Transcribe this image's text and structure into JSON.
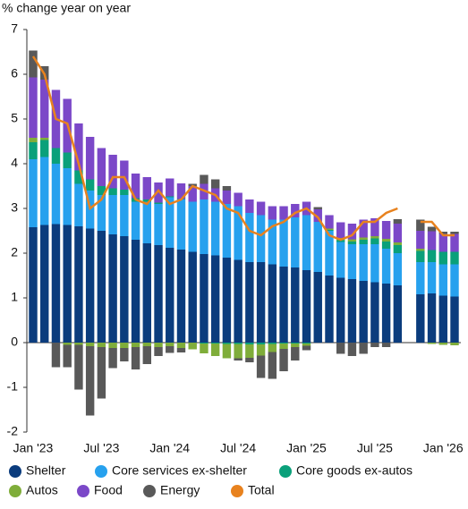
{
  "chart_data": {
    "type": "stacked_bar_line",
    "ylabel": "% change year on year",
    "categories": [
      "Jan '23",
      null,
      null,
      null,
      null,
      null,
      "Jul '23",
      null,
      null,
      null,
      null,
      null,
      "Jan '24",
      null,
      null,
      null,
      null,
      null,
      "Jul '24",
      null,
      null,
      null,
      null,
      null,
      "Jan '25",
      null,
      null,
      null,
      null,
      null,
      "Jul '25",
      null,
      null,
      null,
      null,
      null,
      "Jan '26",
      null
    ],
    "ylim": [
      -2,
      7
    ],
    "yticks": [
      -2,
      -1,
      0,
      1,
      2,
      3,
      4,
      5,
      6,
      7
    ],
    "legend": "bottom",
    "series": [
      {
        "name": "Shelter",
        "color": "#0b3c7d",
        "values": [
          2.58,
          2.63,
          2.65,
          2.63,
          2.6,
          2.55,
          2.5,
          2.42,
          2.38,
          2.3,
          2.22,
          2.18,
          2.12,
          2.08,
          2.03,
          1.98,
          1.95,
          1.9,
          1.85,
          1.8,
          1.8,
          1.75,
          1.7,
          1.68,
          1.62,
          1.58,
          1.5,
          1.45,
          1.42,
          1.38,
          1.35,
          1.32,
          1.28,
          null,
          1.08,
          1.1,
          1.05,
          1.03
        ]
      },
      {
        "name": "Core services ex-shelter",
        "color": "#27a1ee",
        "values": [
          1.52,
          1.52,
          1.35,
          1.27,
          0.95,
          0.85,
          0.8,
          0.88,
          0.92,
          0.85,
          0.93,
          0.92,
          1.13,
          1.12,
          1.12,
          1.22,
          1.2,
          1.2,
          1.2,
          1.1,
          1.05,
          1.0,
          1.05,
          1.12,
          1.23,
          1.12,
          1.0,
          0.8,
          0.78,
          0.82,
          0.85,
          0.78,
          0.72,
          null,
          0.72,
          0.7,
          0.7,
          0.72
        ]
      },
      {
        "name": "Core goods ex-autos",
        "color": "#0aa07a",
        "values": [
          0.38,
          0.38,
          0.35,
          0.35,
          0.3,
          0.25,
          0.2,
          0.15,
          0.12,
          0.08,
          0.05,
          0.03,
          0.02,
          0.01,
          0.0,
          -0.02,
          -0.02,
          -0.03,
          -0.03,
          -0.04,
          -0.04,
          -0.03,
          -0.02,
          -0.02,
          -0.02,
          0.0,
          0.02,
          0.04,
          0.06,
          0.1,
          0.13,
          0.16,
          0.18,
          null,
          0.25,
          0.27,
          0.28,
          0.28
        ]
      },
      {
        "name": "Autos",
        "color": "#7fad3a",
        "values": [
          0.1,
          0.05,
          0.0,
          -0.05,
          -0.05,
          -0.08,
          -0.1,
          -0.12,
          -0.12,
          -0.1,
          -0.08,
          -0.1,
          -0.08,
          -0.12,
          -0.15,
          -0.22,
          -0.28,
          -0.32,
          -0.32,
          -0.3,
          -0.25,
          -0.18,
          -0.12,
          -0.08,
          -0.05,
          0.0,
          0.03,
          0.05,
          0.05,
          0.05,
          0.05,
          0.06,
          0.06,
          null,
          0.05,
          -0.03,
          -0.05,
          -0.06
        ]
      },
      {
        "name": "Food",
        "color": "#7b48c8",
        "values": [
          1.35,
          1.3,
          1.3,
          1.2,
          1.05,
          0.95,
          0.85,
          0.75,
          0.65,
          0.55,
          0.5,
          0.45,
          0.4,
          0.35,
          0.35,
          0.35,
          0.3,
          0.3,
          0.3,
          0.3,
          0.3,
          0.3,
          0.3,
          0.3,
          0.3,
          0.28,
          0.3,
          0.35,
          0.35,
          0.4,
          0.4,
          0.4,
          0.42,
          null,
          0.4,
          0.42,
          0.4,
          0.4
        ]
      },
      {
        "name": "Energy",
        "color": "#595959",
        "values": [
          0.6,
          0.3,
          -0.55,
          -0.5,
          -1.0,
          -1.55,
          -1.15,
          -0.45,
          -0.3,
          -0.5,
          -0.4,
          -0.2,
          -0.15,
          -0.1,
          0.05,
          0.2,
          0.2,
          0.1,
          -0.05,
          -0.1,
          -0.5,
          -0.6,
          -0.5,
          -0.3,
          -0.1,
          0.05,
          0.0,
          -0.25,
          -0.3,
          -0.25,
          -0.1,
          -0.1,
          0.1,
          null,
          0.25,
          0.1,
          0.05,
          0.05
        ]
      },
      {
        "name": "Total",
        "color": "#e8821e",
        "line": true,
        "values": [
          6.4,
          6.0,
          5.0,
          4.9,
          4.0,
          3.0,
          3.2,
          3.7,
          3.7,
          3.2,
          3.1,
          3.4,
          3.1,
          3.2,
          3.5,
          3.4,
          3.3,
          3.0,
          2.9,
          2.5,
          2.4,
          2.6,
          2.7,
          2.9,
          3.0,
          2.8,
          2.4,
          2.3,
          2.4,
          2.7,
          2.7,
          2.9,
          3.0,
          null,
          2.7,
          2.7,
          2.4,
          2.4
        ]
      }
    ]
  }
}
